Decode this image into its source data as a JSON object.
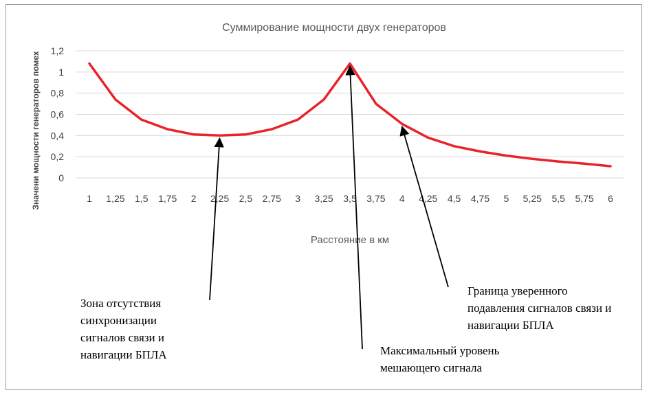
{
  "chart_data": {
    "type": "line",
    "title": "Суммирование мощности двух генераторов",
    "xlabel": "Расстояние в км",
    "ylabel": "Значени мощности генераторов помех",
    "categories": [
      "1",
      "1,25",
      "1,5",
      "1,75",
      "2",
      "2,25",
      "2,5",
      "2,75",
      "3",
      "3,25",
      "3,5",
      "3,75",
      "4",
      "4,25",
      "4,5",
      "4,75",
      "5",
      "5,25",
      "5,5",
      "5,75",
      "6"
    ],
    "series": [
      {
        "values": [
          1.08,
          0.74,
          0.55,
          0.46,
          0.41,
          0.4,
          0.41,
          0.46,
          0.55,
          0.74,
          1.08,
          0.7,
          0.51,
          0.38,
          0.3,
          0.25,
          0.21,
          0.18,
          0.155,
          0.135,
          0.11
        ],
        "color": "#e8232a"
      }
    ],
    "ylim": [
      0,
      1.2
    ],
    "yticks": [
      "0",
      "0,2",
      "0,4",
      "0,6",
      "0,8",
      "1",
      "1,2"
    ],
    "grid": "horizontal",
    "legend": "none",
    "annotations": [
      {
        "text": "Зона отсутствия\nсинхронизации\nсигналов связи и\nнавигации БПЛА",
        "target_category": 5
      },
      {
        "text": "Максимальный уровень\nмешающего сигнала",
        "target_category": 10
      },
      {
        "text": "Граница уверенного\nподавления сигналов связи и\nнавигации БПЛА",
        "target_category": 12
      }
    ]
  },
  "colors": {
    "grid": "#d9d9d9",
    "text": "#404040",
    "arrow": "#000000"
  }
}
